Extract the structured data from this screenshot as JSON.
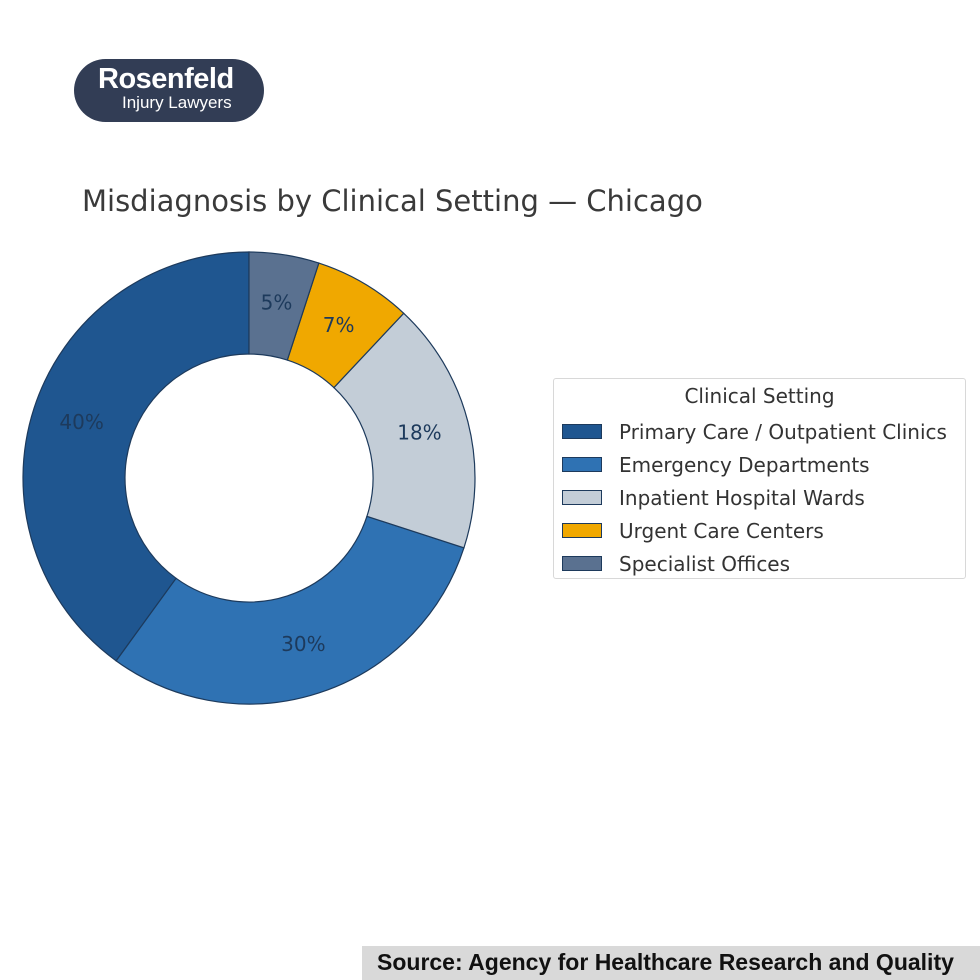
{
  "logo": {
    "name": "Rosenfeld",
    "subtitle": "Injury Lawyers"
  },
  "chart_data": {
    "type": "pie",
    "donut": true,
    "title": "Misdiagnosis by Clinical Setting — Chicago",
    "legend": {
      "title": "Clinical Setting",
      "placement": "right"
    },
    "slices": [
      {
        "label": "Primary Care / Outpatient Clinics",
        "value": 40,
        "pct_label": "40%",
        "color": "#1f5690"
      },
      {
        "label": "Emergency Departments",
        "value": 30,
        "pct_label": "30%",
        "color": "#2f72b3"
      },
      {
        "label": "Inpatient Hospital Wards",
        "value": 18,
        "pct_label": "18%",
        "color": "#c3cdd7"
      },
      {
        "label": "Urgent Care Centers",
        "value": 7,
        "pct_label": "7%",
        "color": "#f0a800"
      },
      {
        "label": "Specialist Offices",
        "value": 5,
        "pct_label": "5%",
        "color": "#5a7190"
      }
    ],
    "label_color": "#1d3a5c",
    "edge_color": "#1d3a5c"
  },
  "source": "Source: Agency for Healthcare Research and Quality"
}
